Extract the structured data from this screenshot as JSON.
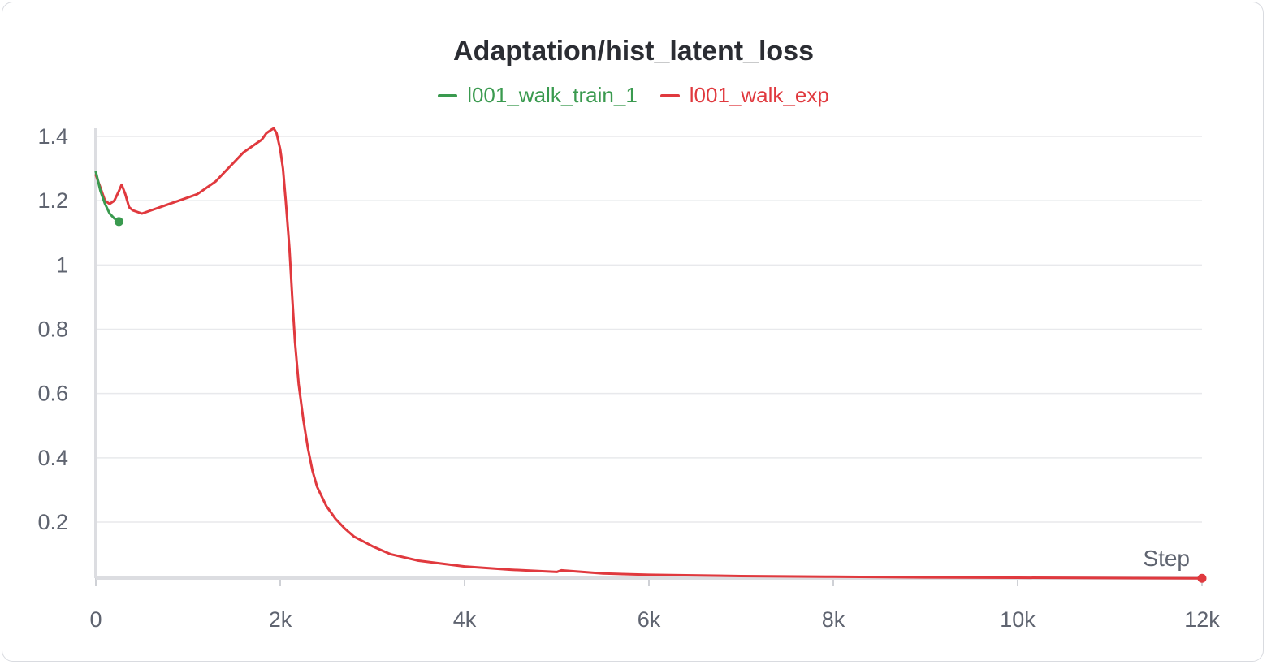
{
  "chart_data": {
    "type": "line",
    "title": "Adaptation/hist_latent_loss",
    "xlabel": "Step",
    "ylabel": "",
    "xlim": [
      0,
      12000
    ],
    "ylim": [
      0.02,
      1.43
    ],
    "grid": true,
    "legend_position": "top-center",
    "x_ticks": [
      {
        "value": 0,
        "label": "0"
      },
      {
        "value": 2000,
        "label": "2k"
      },
      {
        "value": 4000,
        "label": "4k"
      },
      {
        "value": 6000,
        "label": "6k"
      },
      {
        "value": 8000,
        "label": "8k"
      },
      {
        "value": 10000,
        "label": "10k"
      },
      {
        "value": 12000,
        "label": "12k"
      }
    ],
    "y_ticks": [
      {
        "value": 0.2,
        "label": "0.2"
      },
      {
        "value": 0.4,
        "label": "0.4"
      },
      {
        "value": 0.6,
        "label": "0.6"
      },
      {
        "value": 0.8,
        "label": "0.8"
      },
      {
        "value": 1.0,
        "label": "1"
      },
      {
        "value": 1.2,
        "label": "1.2"
      },
      {
        "value": 1.4,
        "label": "1.4"
      }
    ],
    "series": [
      {
        "name": "l001_walk_train_1",
        "color": "#3a9a4f",
        "end_marker": true,
        "x": [
          0,
          50,
          100,
          150,
          200,
          250
        ],
        "y": [
          1.29,
          1.23,
          1.19,
          1.16,
          1.145,
          1.135
        ]
      },
      {
        "name": "l001_walk_exp",
        "color": "#e0393e",
        "end_marker": true,
        "x": [
          0,
          50,
          100,
          150,
          200,
          250,
          280,
          320,
          360,
          400,
          500,
          600,
          700,
          800,
          900,
          1000,
          1100,
          1200,
          1300,
          1400,
          1500,
          1600,
          1700,
          1800,
          1850,
          1900,
          1930,
          1960,
          2000,
          2030,
          2060,
          2100,
          2130,
          2160,
          2200,
          2250,
          2300,
          2350,
          2400,
          2500,
          2600,
          2700,
          2800,
          3000,
          3200,
          3500,
          4000,
          4500,
          5000,
          5050,
          5500,
          6000,
          7000,
          8000,
          9000,
          10000,
          11000,
          12000
        ],
        "y": [
          1.28,
          1.24,
          1.2,
          1.19,
          1.2,
          1.23,
          1.25,
          1.22,
          1.18,
          1.17,
          1.16,
          1.17,
          1.18,
          1.19,
          1.2,
          1.21,
          1.22,
          1.24,
          1.26,
          1.29,
          1.32,
          1.35,
          1.37,
          1.39,
          1.41,
          1.42,
          1.425,
          1.41,
          1.36,
          1.3,
          1.2,
          1.05,
          0.9,
          0.76,
          0.63,
          0.52,
          0.43,
          0.36,
          0.31,
          0.25,
          0.21,
          0.18,
          0.155,
          0.125,
          0.1,
          0.08,
          0.062,
          0.052,
          0.045,
          0.05,
          0.04,
          0.036,
          0.032,
          0.03,
          0.028,
          0.027,
          0.026,
          0.025
        ]
      }
    ]
  }
}
